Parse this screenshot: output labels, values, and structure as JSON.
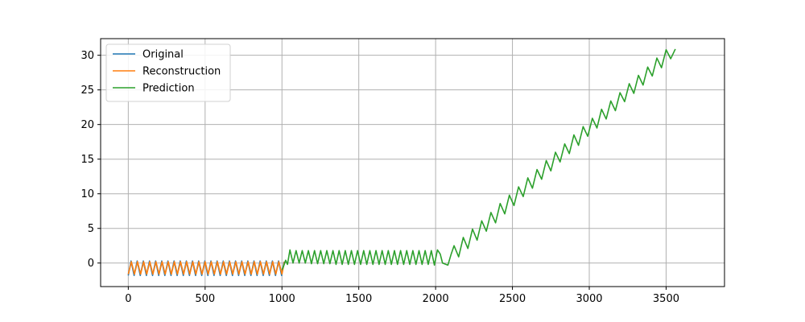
{
  "chart_data": {
    "type": "line",
    "title": "",
    "xlabel": "",
    "ylabel": "",
    "xlim": [
      -180,
      3880
    ],
    "ylim": [
      -3.4,
      32.4
    ],
    "xticks": [
      0,
      500,
      1000,
      1500,
      2000,
      2500,
      3000,
      3500
    ],
    "yticks": [
      0,
      5,
      10,
      15,
      20,
      25,
      30
    ],
    "grid": true,
    "legend_position": "top-left",
    "series": [
      {
        "name": "Original",
        "color": "#1f77b4",
        "points": [
          [
            0,
            -1.8
          ],
          [
            18,
            0.3
          ],
          [
            38,
            -1.8
          ],
          [
            58,
            0.3
          ],
          [
            78,
            -1.8
          ],
          [
            98,
            0.3
          ],
          [
            118,
            -1.8
          ],
          [
            138,
            0.3
          ],
          [
            158,
            -1.8
          ],
          [
            178,
            0.3
          ],
          [
            198,
            -1.8
          ],
          [
            218,
            0.3
          ],
          [
            238,
            -1.8
          ],
          [
            258,
            0.3
          ],
          [
            278,
            -1.8
          ],
          [
            298,
            0.3
          ],
          [
            318,
            -1.8
          ],
          [
            338,
            0.3
          ],
          [
            358,
            -1.8
          ],
          [
            378,
            0.3
          ],
          [
            398,
            -1.8
          ],
          [
            418,
            0.3
          ],
          [
            438,
            -1.8
          ],
          [
            458,
            0.3
          ],
          [
            478,
            -1.8
          ],
          [
            498,
            0.3
          ],
          [
            518,
            -1.8
          ],
          [
            538,
            0.3
          ],
          [
            558,
            -1.8
          ],
          [
            578,
            0.3
          ],
          [
            598,
            -1.8
          ],
          [
            618,
            0.3
          ],
          [
            638,
            -1.8
          ],
          [
            658,
            0.3
          ],
          [
            678,
            -1.8
          ],
          [
            698,
            0.3
          ],
          [
            718,
            -1.8
          ],
          [
            738,
            0.3
          ],
          [
            758,
            -1.8
          ],
          [
            778,
            0.3
          ],
          [
            798,
            -1.8
          ],
          [
            818,
            0.3
          ],
          [
            838,
            -1.8
          ],
          [
            858,
            0.3
          ],
          [
            878,
            -1.8
          ],
          [
            898,
            0.3
          ],
          [
            918,
            -1.8
          ],
          [
            938,
            0.3
          ],
          [
            958,
            -1.8
          ],
          [
            978,
            0.3
          ],
          [
            998,
            -1.8
          ],
          [
            1014,
            0.2
          ]
        ]
      },
      {
        "name": "Reconstruction",
        "color": "#ff7f0e",
        "points": [
          [
            0,
            -1.6
          ],
          [
            20,
            0.2
          ],
          [
            40,
            -1.6
          ],
          [
            60,
            0.2
          ],
          [
            80,
            -1.6
          ],
          [
            100,
            0.2
          ],
          [
            120,
            -1.6
          ],
          [
            140,
            0.2
          ],
          [
            160,
            -1.6
          ],
          [
            180,
            0.2
          ],
          [
            200,
            -1.6
          ],
          [
            220,
            0.2
          ],
          [
            240,
            -1.6
          ],
          [
            260,
            0.2
          ],
          [
            280,
            -1.6
          ],
          [
            300,
            0.2
          ],
          [
            320,
            -1.6
          ],
          [
            340,
            0.2
          ],
          [
            360,
            -1.6
          ],
          [
            380,
            0.2
          ],
          [
            400,
            -1.6
          ],
          [
            420,
            0.2
          ],
          [
            440,
            -1.6
          ],
          [
            460,
            0.2
          ],
          [
            480,
            -1.6
          ],
          [
            500,
            0.2
          ],
          [
            520,
            -1.6
          ],
          [
            540,
            0.2
          ],
          [
            560,
            -1.6
          ],
          [
            580,
            0.2
          ],
          [
            600,
            -1.6
          ],
          [
            620,
            0.2
          ],
          [
            640,
            -1.6
          ],
          [
            660,
            0.2
          ],
          [
            680,
            -1.6
          ],
          [
            700,
            0.2
          ],
          [
            720,
            -1.6
          ],
          [
            740,
            0.2
          ],
          [
            760,
            -1.6
          ],
          [
            780,
            0.2
          ],
          [
            800,
            -1.6
          ],
          [
            820,
            0.2
          ],
          [
            840,
            -1.6
          ],
          [
            860,
            0.2
          ],
          [
            880,
            -1.6
          ],
          [
            900,
            0.2
          ],
          [
            920,
            -1.6
          ],
          [
            940,
            0.2
          ],
          [
            960,
            -1.6
          ],
          [
            980,
            0.2
          ],
          [
            1000,
            -1.6
          ],
          [
            1016,
            0.2
          ]
        ]
      },
      {
        "name": "Prediction",
        "color": "#2ca02c",
        "points": [
          [
            1000,
            -1.0
          ],
          [
            1010,
            -0.5
          ],
          [
            1024,
            0.4
          ],
          [
            1036,
            -0.2
          ],
          [
            1052,
            1.9
          ],
          [
            1072,
            0.0
          ],
          [
            1092,
            1.8
          ],
          [
            1112,
            0.0
          ],
          [
            1132,
            1.8
          ],
          [
            1152,
            0.0
          ],
          [
            1172,
            1.8
          ],
          [
            1192,
            -0.1
          ],
          [
            1212,
            1.8
          ],
          [
            1232,
            -0.1
          ],
          [
            1252,
            1.8
          ],
          [
            1272,
            -0.1
          ],
          [
            1292,
            1.8
          ],
          [
            1312,
            -0.1
          ],
          [
            1332,
            1.8
          ],
          [
            1352,
            -0.2
          ],
          [
            1372,
            1.8
          ],
          [
            1392,
            -0.2
          ],
          [
            1412,
            1.8
          ],
          [
            1432,
            -0.2
          ],
          [
            1452,
            1.8
          ],
          [
            1472,
            -0.2
          ],
          [
            1492,
            1.8
          ],
          [
            1512,
            -0.2
          ],
          [
            1532,
            1.8
          ],
          [
            1552,
            -0.2
          ],
          [
            1572,
            1.8
          ],
          [
            1592,
            -0.2
          ],
          [
            1612,
            1.8
          ],
          [
            1632,
            -0.2
          ],
          [
            1652,
            1.8
          ],
          [
            1672,
            -0.2
          ],
          [
            1692,
            1.8
          ],
          [
            1712,
            -0.2
          ],
          [
            1732,
            1.8
          ],
          [
            1752,
            -0.2
          ],
          [
            1772,
            1.8
          ],
          [
            1792,
            -0.2
          ],
          [
            1812,
            1.8
          ],
          [
            1832,
            -0.2
          ],
          [
            1852,
            1.8
          ],
          [
            1872,
            -0.2
          ],
          [
            1892,
            1.8
          ],
          [
            1912,
            -0.2
          ],
          [
            1932,
            1.8
          ],
          [
            1952,
            -0.2
          ],
          [
            1972,
            1.8
          ],
          [
            1992,
            -0.3
          ],
          [
            2012,
            1.9
          ],
          [
            2030,
            1.3
          ],
          [
            2045,
            0.0
          ],
          [
            2080,
            -0.3
          ],
          [
            2100,
            1.2
          ],
          [
            2120,
            2.5
          ],
          [
            2150,
            0.9
          ],
          [
            2180,
            3.7
          ],
          [
            2210,
            2.1
          ],
          [
            2240,
            4.9
          ],
          [
            2270,
            3.3
          ],
          [
            2300,
            6.1
          ],
          [
            2330,
            4.6
          ],
          [
            2360,
            7.3
          ],
          [
            2390,
            5.8
          ],
          [
            2420,
            8.6
          ],
          [
            2450,
            7.1
          ],
          [
            2480,
            9.8
          ],
          [
            2510,
            8.3
          ],
          [
            2540,
            11.0
          ],
          [
            2570,
            9.6
          ],
          [
            2600,
            12.3
          ],
          [
            2630,
            10.8
          ],
          [
            2660,
            13.5
          ],
          [
            2690,
            12.1
          ],
          [
            2720,
            14.8
          ],
          [
            2750,
            13.3
          ],
          [
            2780,
            16.0
          ],
          [
            2810,
            14.6
          ],
          [
            2840,
            17.2
          ],
          [
            2870,
            15.8
          ],
          [
            2900,
            18.5
          ],
          [
            2930,
            17.0
          ],
          [
            2960,
            19.7
          ],
          [
            2990,
            18.3
          ],
          [
            3020,
            20.9
          ],
          [
            3050,
            19.5
          ],
          [
            3080,
            22.2
          ],
          [
            3110,
            20.8
          ],
          [
            3140,
            23.4
          ],
          [
            3170,
            22.0
          ],
          [
            3200,
            24.6
          ],
          [
            3230,
            23.3
          ],
          [
            3260,
            25.9
          ],
          [
            3290,
            24.5
          ],
          [
            3320,
            27.1
          ],
          [
            3350,
            25.7
          ],
          [
            3380,
            28.3
          ],
          [
            3410,
            27.0
          ],
          [
            3440,
            29.6
          ],
          [
            3470,
            28.2
          ],
          [
            3500,
            30.8
          ],
          [
            3530,
            29.5
          ],
          [
            3560,
            30.9
          ]
        ]
      }
    ]
  }
}
